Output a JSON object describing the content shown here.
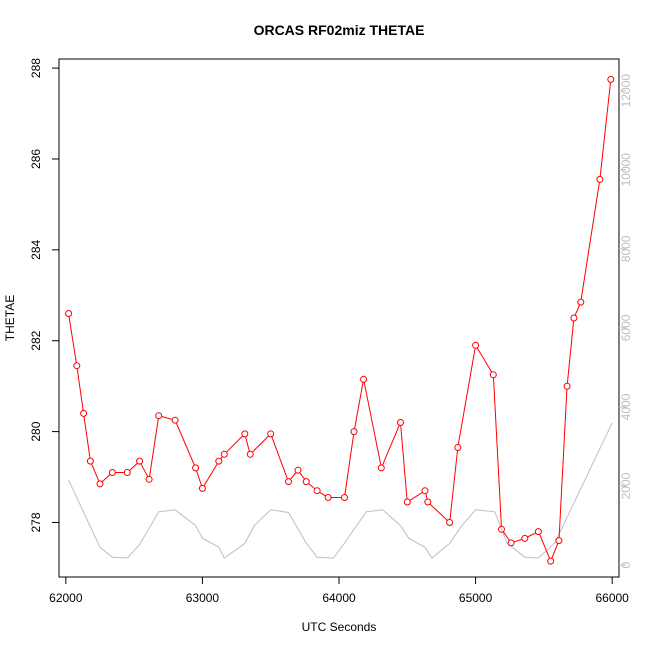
{
  "chart_data": {
    "type": "line",
    "title": "ORCAS RF02miz THETAE",
    "xlabel": "UTC Seconds",
    "ylabel": "THETAE",
    "xlim": [
      61950,
      66050
    ],
    "ylim": [
      276.8,
      288.2
    ],
    "y2lim": [
      -300,
      12800
    ],
    "x_ticks": [
      "62000",
      "63000",
      "64000",
      "65000",
      "66000"
    ],
    "y_ticks": [
      "278",
      "280",
      "282",
      "284",
      "286",
      "288"
    ],
    "y2_ticks": [
      "0",
      "2000",
      "4000",
      "6000",
      "8000",
      "10000",
      "12000"
    ],
    "colors": {
      "primary": "#ff0000",
      "secondary": "#bebebe",
      "axis": "#000000"
    },
    "series": [
      {
        "axis": "left",
        "style": "line-with-open-circles",
        "x": [
          62020,
          62080,
          62130,
          62180,
          62250,
          62340,
          62450,
          62540,
          62610,
          62680,
          62800,
          62950,
          63000,
          63120,
          63160,
          63310,
          63350,
          63500,
          63630,
          63700,
          63760,
          63840,
          63920,
          64040,
          64110,
          64180,
          64310,
          64450,
          64500,
          64630,
          64650,
          64810,
          64870,
          65000,
          65130,
          65190,
          65260,
          65360,
          65460,
          65550,
          65610,
          65670,
          65720,
          65770,
          65910,
          65990
        ],
        "values": [
          282.6,
          281.45,
          280.4,
          279.35,
          278.85,
          279.1,
          279.1,
          279.35,
          278.95,
          280.35,
          280.25,
          279.2,
          278.75,
          279.35,
          279.5,
          279.95,
          279.5,
          279.95,
          278.9,
          279.15,
          278.9,
          278.7,
          278.55,
          278.55,
          280.0,
          281.15,
          279.2,
          280.2,
          278.45,
          278.7,
          278.45,
          278.0,
          279.65,
          281.9,
          281.25,
          277.85,
          277.55,
          277.65,
          277.8,
          277.15,
          277.6,
          281.0,
          282.5,
          282.85,
          285.55,
          287.75
        ]
      },
      {
        "axis": "right",
        "style": "line",
        "x": [
          62020,
          62250,
          62340,
          62450,
          62540,
          62680,
          62800,
          62950,
          63000,
          63120,
          63160,
          63310,
          63380,
          63500,
          63630,
          63760,
          63840,
          63960,
          64040,
          64200,
          64320,
          64450,
          64510,
          64630,
          64680,
          64810,
          64900,
          65000,
          65140,
          65230,
          65360,
          65460,
          65580,
          66000
        ],
        "values": [
          2150,
          450,
          200,
          180,
          520,
          1350,
          1400,
          1000,
          680,
          450,
          180,
          550,
          1000,
          1400,
          1330,
          560,
          200,
          180,
          560,
          1350,
          1400,
          1000,
          680,
          450,
          180,
          550,
          1000,
          1400,
          1350,
          560,
          200,
          180,
          560,
          3600
        ]
      }
    ]
  }
}
